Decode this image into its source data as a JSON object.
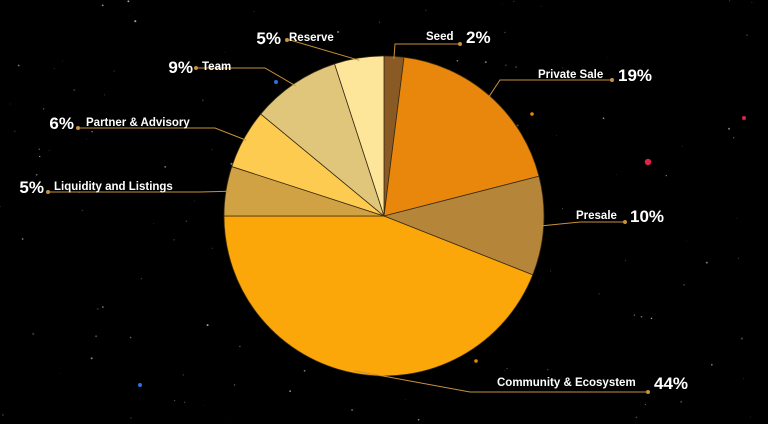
{
  "chart_data": {
    "type": "pie",
    "title": "",
    "slices": [
      {
        "label": "Seed",
        "value": 2,
        "display": "2%",
        "color": "#8a5a24"
      },
      {
        "label": "Private Sale",
        "value": 19,
        "display": "19%",
        "color": "#e8870c"
      },
      {
        "label": "Presale",
        "value": 10,
        "display": "10%",
        "color": "#b5863a"
      },
      {
        "label": "Community & Ecosystem",
        "value": 44,
        "display": "44%",
        "color": "#fba609"
      },
      {
        "label": "Liquidity and Listings",
        "value": 5,
        "display": "5%",
        "color": "#d1a243"
      },
      {
        "label": "Partner & Advisory",
        "value": 6,
        "display": "6%",
        "color": "#fdcb4f"
      },
      {
        "label": "Team",
        "value": 9,
        "display": "9%",
        "color": "#e0c67a"
      },
      {
        "label": "Reserve",
        "value": 5,
        "display": "5%",
        "color": "#fde69a"
      }
    ],
    "start": "top, clockwise",
    "legend": "none, callout labels",
    "grid": false
  },
  "colors": {
    "background": "#000000",
    "leader_line": "#c8913a",
    "label_text": "#ffffff"
  }
}
